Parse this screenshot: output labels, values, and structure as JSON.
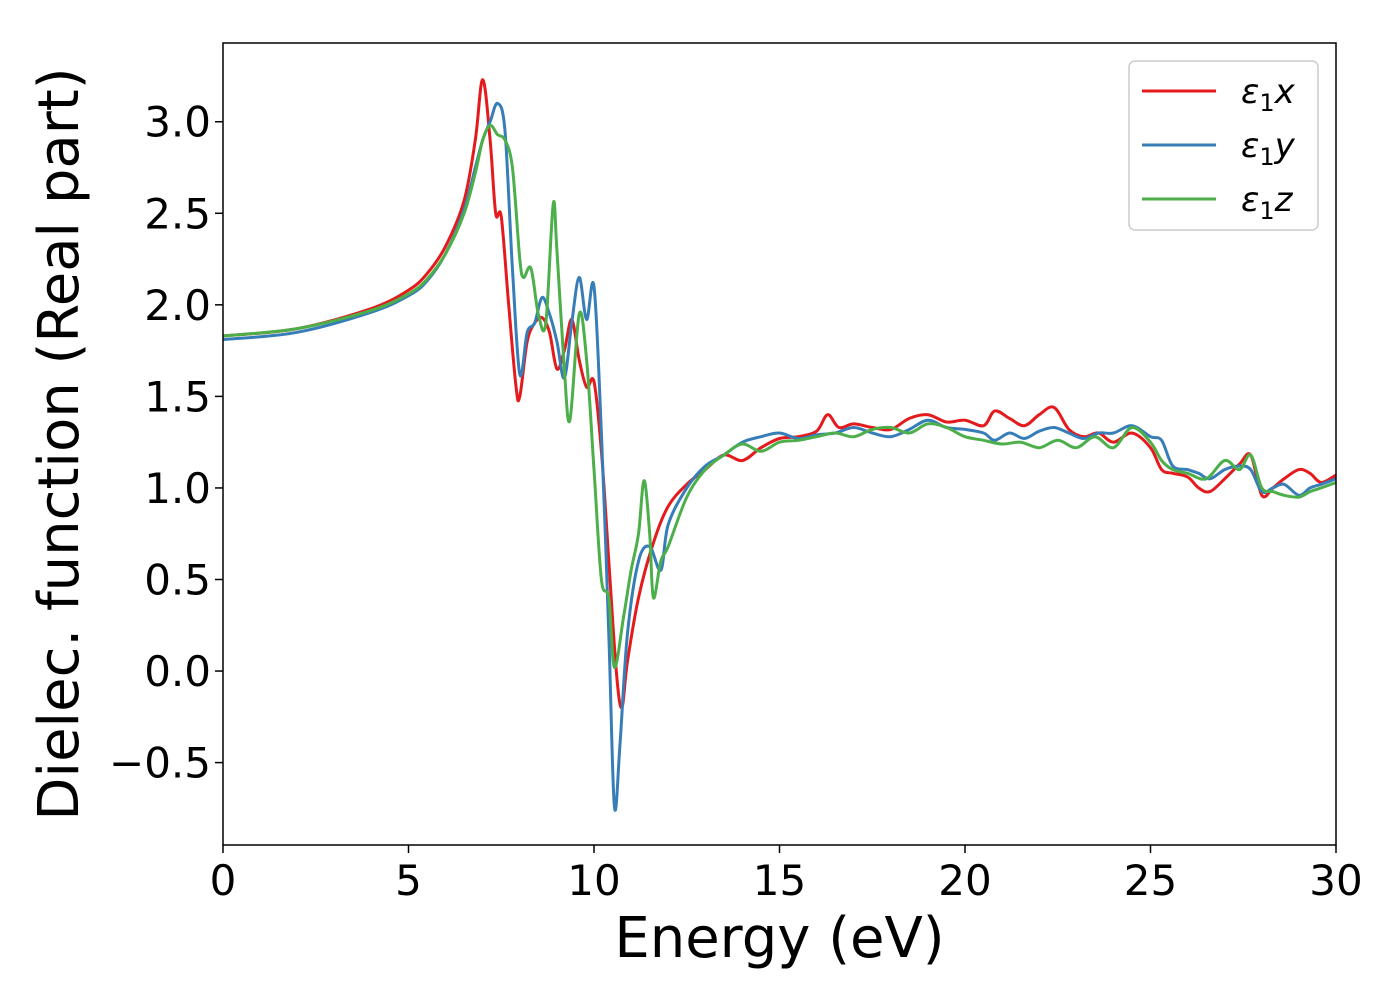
{
  "chart_data": {
    "type": "line",
    "title": "",
    "xlabel": "Energy (eV)",
    "ylabel": "Dielec. function (Real part)",
    "xlim": [
      0,
      30
    ],
    "ylim": [
      -0.95,
      3.43
    ],
    "xticks": [
      "0",
      "5",
      "10",
      "15",
      "20",
      "25",
      "30"
    ],
    "xtick_values": [
      0,
      5,
      10,
      15,
      20,
      25,
      30
    ],
    "yticks": [
      "−0.5",
      "0.0",
      "0.5",
      "1.0",
      "1.5",
      "2.0",
      "2.5",
      "3.0"
    ],
    "ytick_values": [
      -0.5,
      0.0,
      0.5,
      1.0,
      1.5,
      2.0,
      2.5,
      3.0
    ],
    "grid": false,
    "legend_position": "top-right",
    "series": [
      {
        "name": "ε₁x",
        "label_main": "ε",
        "label_sub": "1",
        "label_suffix": "x",
        "color": "#e41a1c",
        "x": [
          0,
          2,
          4,
          5,
          5.5,
          6,
          6.5,
          6.8,
          7.0,
          7.2,
          7.35,
          7.5,
          7.7,
          7.9,
          8.0,
          8.2,
          8.4,
          8.6,
          8.8,
          9.0,
          9.2,
          9.4,
          9.6,
          9.8,
          10.0,
          10.2,
          10.4,
          10.6,
          10.75,
          10.9,
          11.2,
          11.6,
          12.0,
          12.5,
          13.0,
          13.5,
          14.0,
          14.5,
          15.0,
          15.5,
          16.0,
          16.3,
          16.6,
          17.0,
          17.5,
          18.0,
          18.5,
          19.0,
          19.5,
          20.0,
          20.5,
          20.8,
          21.2,
          21.6,
          22.0,
          22.4,
          22.8,
          23.2,
          23.6,
          24.0,
          24.5,
          25.0,
          25.3,
          25.6,
          26.0,
          26.3,
          26.6,
          27.0,
          27.4,
          27.7,
          28.0,
          28.3,
          28.6,
          29.0,
          29.3,
          29.6,
          30.0
        ],
        "y": [
          1.83,
          1.87,
          1.98,
          2.08,
          2.17,
          2.32,
          2.57,
          2.9,
          3.23,
          2.9,
          2.5,
          2.48,
          2.0,
          1.55,
          1.5,
          1.8,
          1.9,
          1.93,
          1.85,
          1.65,
          1.75,
          1.92,
          1.7,
          1.55,
          1.58,
          1.2,
          0.6,
          0.0,
          -0.2,
          0.05,
          0.4,
          0.7,
          0.9,
          1.02,
          1.1,
          1.18,
          1.15,
          1.22,
          1.27,
          1.28,
          1.31,
          1.4,
          1.33,
          1.35,
          1.33,
          1.32,
          1.38,
          1.4,
          1.36,
          1.37,
          1.34,
          1.42,
          1.38,
          1.34,
          1.4,
          1.44,
          1.32,
          1.28,
          1.3,
          1.25,
          1.3,
          1.22,
          1.1,
          1.08,
          1.06,
          1.0,
          0.98,
          1.05,
          1.13,
          1.18,
          0.96,
          1.0,
          1.05,
          1.1,
          1.08,
          1.03,
          1.07
        ]
      },
      {
        "name": "ε₁y",
        "label_main": "ε",
        "label_sub": "1",
        "label_suffix": "y",
        "color": "#377eb8",
        "x": [
          0,
          2,
          4,
          5,
          5.5,
          6,
          6.5,
          6.8,
          7.0,
          7.2,
          7.4,
          7.6,
          7.8,
          8.0,
          8.2,
          8.4,
          8.6,
          8.8,
          9.0,
          9.2,
          9.4,
          9.6,
          9.8,
          10.0,
          10.2,
          10.4,
          10.55,
          10.7,
          10.9,
          11.2,
          11.5,
          11.8,
          12.0,
          12.5,
          13.0,
          13.5,
          14.0,
          14.5,
          15.0,
          15.5,
          16.0,
          16.5,
          17.0,
          17.5,
          18.0,
          18.5,
          19.0,
          19.5,
          20.0,
          20.5,
          20.8,
          21.2,
          21.6,
          22.0,
          22.4,
          22.8,
          23.2,
          23.6,
          24.0,
          24.5,
          25.0,
          25.3,
          25.6,
          26.0,
          26.3,
          26.6,
          27.0,
          27.4,
          27.7,
          28.0,
          28.3,
          28.6,
          29.0,
          29.3,
          29.6,
          30.0
        ],
        "y": [
          1.81,
          1.85,
          1.96,
          2.05,
          2.13,
          2.28,
          2.52,
          2.75,
          2.9,
          3.0,
          3.1,
          2.95,
          2.2,
          1.62,
          1.85,
          1.9,
          2.04,
          1.95,
          1.8,
          1.6,
          1.9,
          2.15,
          1.92,
          2.1,
          1.3,
          0.2,
          -0.74,
          -0.4,
          0.2,
          0.6,
          0.68,
          0.55,
          0.8,
          1.0,
          1.12,
          1.18,
          1.25,
          1.28,
          1.3,
          1.27,
          1.29,
          1.3,
          1.33,
          1.3,
          1.28,
          1.32,
          1.37,
          1.33,
          1.32,
          1.3,
          1.26,
          1.3,
          1.27,
          1.31,
          1.33,
          1.3,
          1.27,
          1.3,
          1.3,
          1.34,
          1.28,
          1.26,
          1.12,
          1.1,
          1.08,
          1.05,
          1.1,
          1.12,
          1.1,
          0.98,
          1.0,
          1.02,
          0.96,
          1.0,
          1.02,
          1.05
        ]
      },
      {
        "name": "ε₁z",
        "label_main": "ε",
        "label_sub": "1",
        "label_suffix": "z",
        "color": "#4daf4a",
        "x": [
          0,
          2,
          4,
          5,
          5.5,
          6,
          6.5,
          6.8,
          7.0,
          7.2,
          7.4,
          7.6,
          7.8,
          8.0,
          8.1,
          8.3,
          8.5,
          8.7,
          8.9,
          9.0,
          9.2,
          9.35,
          9.6,
          9.8,
          10.0,
          10.2,
          10.4,
          10.55,
          10.8,
          11.0,
          11.2,
          11.35,
          11.5,
          11.6,
          11.8,
          12.0,
          12.5,
          13.0,
          13.5,
          14.0,
          14.5,
          15.0,
          15.5,
          16.0,
          16.5,
          17.0,
          17.5,
          18.0,
          18.5,
          19.0,
          19.5,
          20.0,
          20.5,
          21.0,
          21.5,
          22.0,
          22.5,
          23.0,
          23.5,
          24.0,
          24.5,
          25.0,
          25.3,
          25.6,
          26.0,
          26.5,
          27.0,
          27.4,
          27.7,
          28.0,
          28.3,
          28.6,
          29.0,
          29.3,
          29.6,
          30.0
        ],
        "y": [
          1.83,
          1.87,
          1.97,
          2.06,
          2.14,
          2.28,
          2.5,
          2.72,
          2.9,
          2.98,
          2.93,
          2.9,
          2.75,
          2.25,
          2.15,
          2.2,
          1.95,
          1.9,
          2.55,
          2.3,
          1.65,
          1.37,
          1.95,
          1.7,
          1.1,
          0.5,
          0.4,
          0.02,
          0.3,
          0.55,
          0.75,
          1.04,
          0.75,
          0.4,
          0.6,
          0.68,
          0.95,
          1.1,
          1.18,
          1.24,
          1.2,
          1.25,
          1.26,
          1.28,
          1.3,
          1.28,
          1.32,
          1.33,
          1.3,
          1.35,
          1.33,
          1.28,
          1.26,
          1.24,
          1.25,
          1.22,
          1.26,
          1.22,
          1.28,
          1.22,
          1.33,
          1.25,
          1.15,
          1.1,
          1.08,
          1.05,
          1.15,
          1.1,
          1.18,
          1.0,
          0.98,
          0.96,
          0.95,
          0.98,
          1.0,
          1.03
        ]
      }
    ]
  }
}
